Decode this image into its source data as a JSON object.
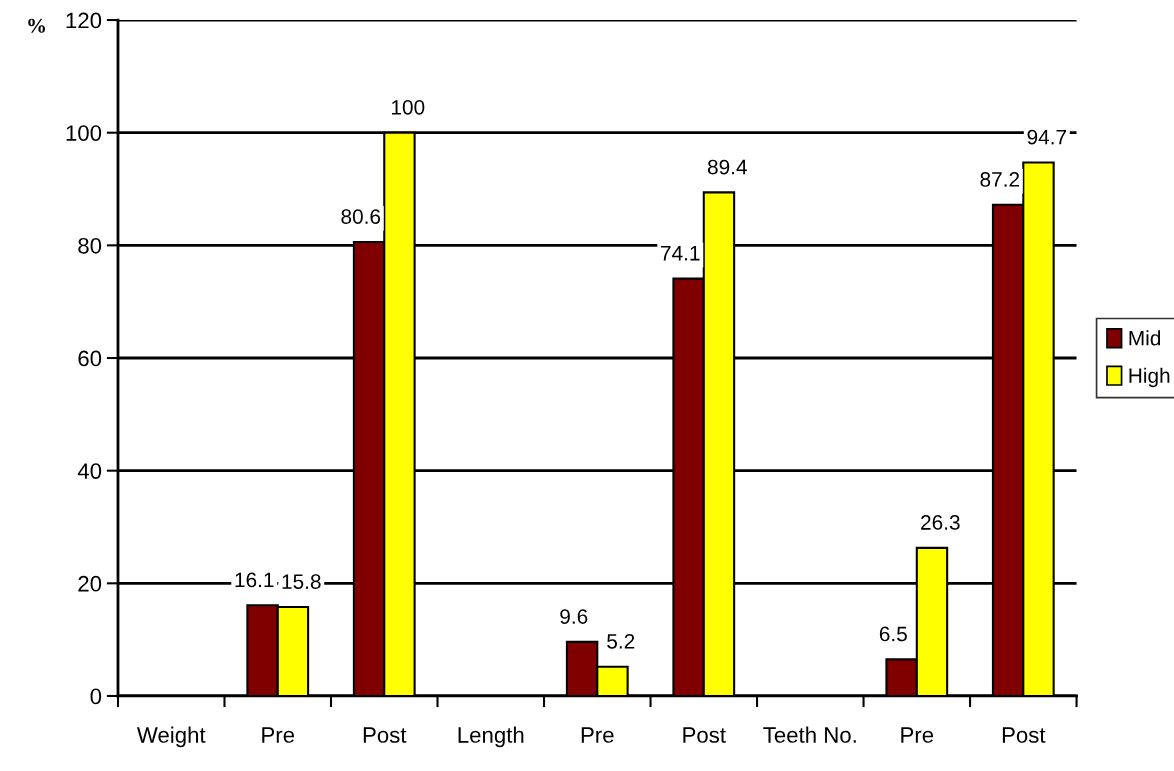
{
  "chart_data": {
    "type": "bar",
    "ylabel": "%",
    "categories": [
      "Weight",
      "Pre",
      "Post",
      "Length",
      "Pre",
      "Post",
      "Teeth No.",
      "Pre",
      "Post"
    ],
    "series": [
      {
        "name": "Mid",
        "color": "#800000",
        "values": [
          null,
          16.1,
          80.6,
          null,
          9.6,
          74.1,
          null,
          6.5,
          87.2
        ]
      },
      {
        "name": "High",
        "color": "#ffff00",
        "values": [
          null,
          15.8,
          100,
          null,
          5.2,
          89.4,
          null,
          26.3,
          94.7
        ]
      }
    ],
    "ylim": [
      0,
      120
    ],
    "yticks": [
      0,
      20,
      40,
      60,
      80,
      100,
      120
    ],
    "grid": "y",
    "legend": "right",
    "data_labels": true
  }
}
